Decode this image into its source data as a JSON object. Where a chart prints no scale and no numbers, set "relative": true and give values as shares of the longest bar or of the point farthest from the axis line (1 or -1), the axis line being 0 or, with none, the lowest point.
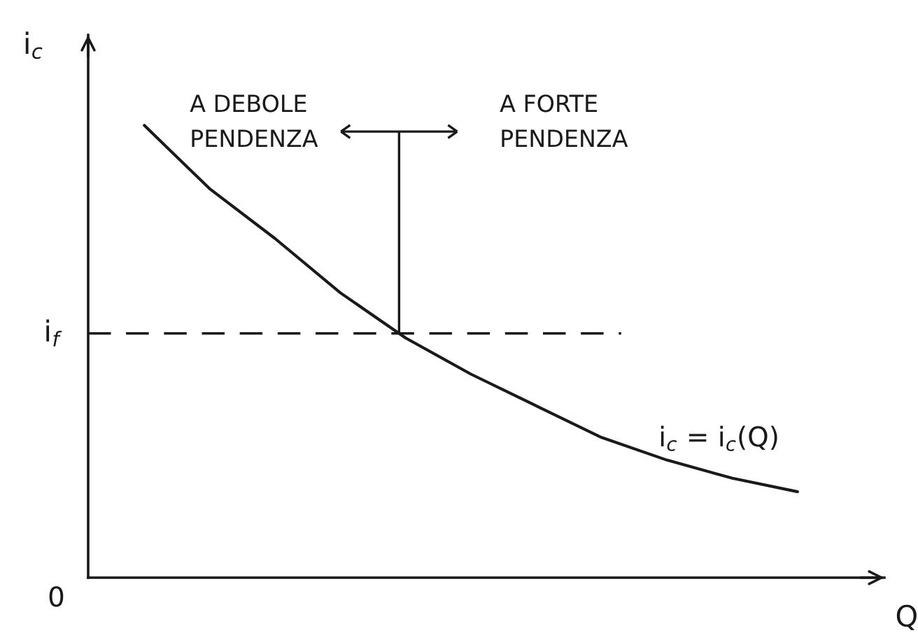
{
  "chart_data": {
    "type": "line",
    "relative": true,
    "xlabel": "Q",
    "ylabel": "i$_{c}$",
    "categories": [
      null,
      null,
      null,
      null,
      null,
      null,
      null,
      null,
      null,
      null,
      null
    ],
    "series": [
      {
        "name": "i$_{c}$ = i$_{c}$(Q)",
        "color": "#1a1a1a",
        "values": [
          1,
          0.86,
          0.75,
          0.63,
          0.53,
          0.45,
          0.38,
          0.31,
          0.26,
          0.22,
          0.19
        ]
      }
    ],
    "ref_lines": [
      {
        "axis": "y",
        "value": 0.54,
        "label": "i$_{f}$",
        "line_style": "dashed",
        "color": "#1a1a1a"
      }
    ],
    "annotations": [
      "A DEBOLE\nPENDENZA",
      "A FORTE\nPENDENZA",
      "0"
    ]
  }
}
